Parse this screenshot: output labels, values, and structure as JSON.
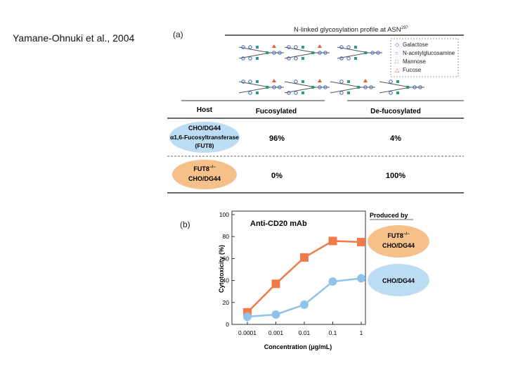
{
  "citation": "Yamane-Ohnuki et al., 2004",
  "panel_a": {
    "label": "(a)",
    "header": "N-linked glycosylation profile at ASN",
    "header_sup": "297",
    "legend": [
      {
        "symbol": "◇",
        "label": "Galactose",
        "color": "#3b5bb5"
      },
      {
        "symbol": "○",
        "label": "N-acetylglucosamine",
        "color": "#3b5bb5"
      },
      {
        "symbol": "□",
        "label": "Mannose",
        "color": "#2e9a86"
      },
      {
        "symbol": "△",
        "label": "Fucose",
        "color": "#e05a3a"
      }
    ],
    "table": {
      "headers": {
        "host": "Host",
        "fucosylated": "Fucosylated",
        "defucosylated": "De-fucosylated"
      },
      "rows": [
        {
          "host_line1": "CHO/DG44",
          "host_line2": "α1,6-Fucosyltransferase",
          "host_line3": "(FUT8)",
          "fucosylated": "96%",
          "defucosylated": "4%",
          "color": "#bcdcf3"
        },
        {
          "host_line1": "FUT8",
          "host_sup": "−/−",
          "host_line2": "CHO/DG44",
          "fucosylated": "0%",
          "defucosylated": "100%",
          "color": "#f5c089"
        }
      ]
    }
  },
  "panel_b": {
    "label": "(b)",
    "produced_by": "Produced by",
    "badges": [
      {
        "line1": "FUT8",
        "sup": "−/−",
        "line2": "CHO/DG44",
        "color": "#f5c089"
      },
      {
        "line1": "CHO/DG44",
        "color": "#bcdcf3"
      }
    ]
  },
  "chart_data": {
    "type": "line",
    "title": "Anti-CD20 mAb",
    "xlabel": "Concentration (μg/mL)",
    "ylabel": "Cytotoxicity (%)",
    "x_scale": "log",
    "categories": [
      "0.0001",
      "0.001",
      "0.01",
      "0.1",
      "1"
    ],
    "ylim": [
      0,
      100
    ],
    "yticks": [
      0,
      20,
      40,
      60,
      80,
      100
    ],
    "grid": false,
    "series": [
      {
        "name": "FUT8−/− CHO/DG44",
        "marker": "square",
        "color": "#f07a4a",
        "values": [
          11,
          37,
          61,
          76,
          75
        ]
      },
      {
        "name": "CHO/DG44",
        "marker": "circle",
        "color": "#8fc3ea",
        "values": [
          7,
          9,
          18,
          39,
          42
        ]
      }
    ]
  }
}
